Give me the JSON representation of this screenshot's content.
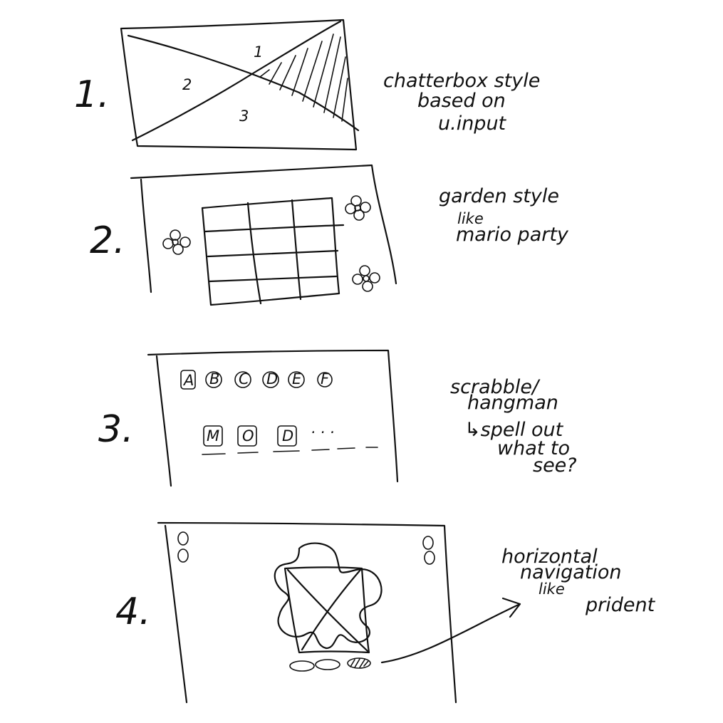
{
  "sketches": [
    {
      "number": "1.",
      "region_labels": [
        "1",
        "2",
        "3"
      ],
      "note_lines": [
        "chatterbox style",
        "based on",
        "u.input"
      ]
    },
    {
      "number": "2.",
      "note_lines": [
        "garden style",
        "like",
        "mario party"
      ]
    },
    {
      "number": "3.",
      "letter_tiles": [
        "A",
        "B",
        "C",
        "D",
        "E",
        "F"
      ],
      "answer_tiles": [
        "M",
        "O",
        "D"
      ],
      "answer_trailing": "· · ·",
      "note_lines": [
        "scrabble/",
        "hangman",
        "↳spell out",
        "what to",
        "see?"
      ]
    },
    {
      "number": "4.",
      "note_lines": [
        "horizontal",
        "navigation",
        "like",
        "prident"
      ]
    }
  ]
}
